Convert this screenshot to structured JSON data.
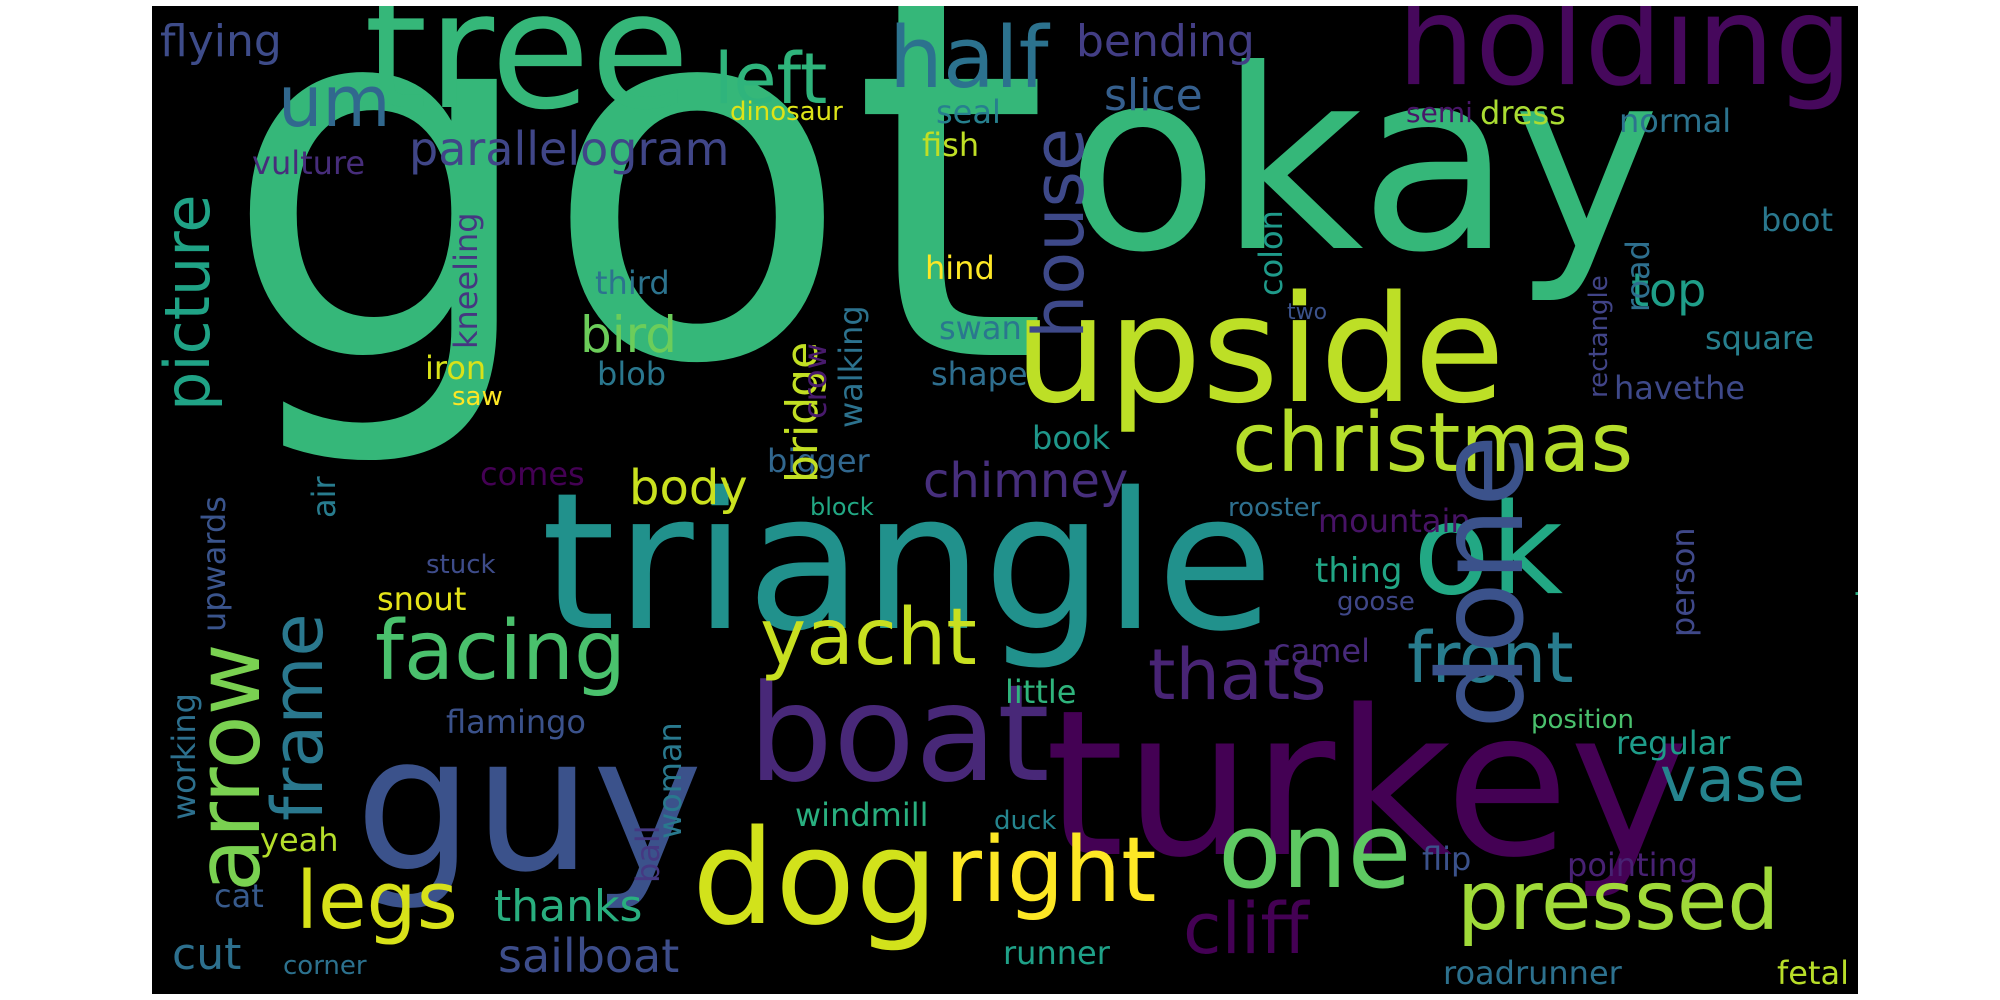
{
  "background": "#000000",
  "words": [
    {
      "text": "got",
      "color": "#35b779"
    },
    {
      "text": "okay",
      "color": "#35b779"
    },
    {
      "text": "triangle",
      "color": "#21918c"
    },
    {
      "text": "turkey",
      "color": "#440154"
    },
    {
      "text": "tree",
      "color": "#35b779"
    },
    {
      "text": "holding",
      "color": "#46085c"
    },
    {
      "text": "upside",
      "color": "#bddf26"
    },
    {
      "text": "guy",
      "color": "#3b528b"
    },
    {
      "text": "boat",
      "color": "#482878"
    },
    {
      "text": "dog",
      "color": "#d2e21b"
    },
    {
      "text": "ok",
      "color": "#22a884"
    },
    {
      "text": "done",
      "color": "#3b528b"
    },
    {
      "text": "one",
      "color": "#5ec962"
    },
    {
      "text": "half",
      "color": "#2c728e"
    },
    {
      "text": "christmas",
      "color": "#b5de2b"
    },
    {
      "text": "right",
      "color": "#fde725"
    },
    {
      "text": "pressed",
      "color": "#a0da39"
    },
    {
      "text": "facing",
      "color": "#4ac16d"
    },
    {
      "text": "yacht",
      "color": "#c8e020"
    },
    {
      "text": "left",
      "color": "#2fb47c"
    },
    {
      "text": "um",
      "color": "#31688e"
    },
    {
      "text": "house",
      "color": "#3e4989"
    },
    {
      "text": "legs",
      "color": "#d8e219"
    },
    {
      "text": "front",
      "color": "#287c8e"
    },
    {
      "text": "thats",
      "color": "#482475"
    },
    {
      "text": "cliff",
      "color": "#440154"
    },
    {
      "text": "arrow",
      "color": "#7ad151"
    },
    {
      "text": "frame",
      "color": "#2a788e"
    },
    {
      "text": "picture",
      "color": "#20a386"
    },
    {
      "text": "vase",
      "color": "#25848e"
    },
    {
      "text": "parallelogram",
      "color": "#404688"
    },
    {
      "text": "bending",
      "color": "#433e85"
    },
    {
      "text": "slice",
      "color": "#355f8d"
    },
    {
      "text": "flying",
      "color": "#3e4c8a"
    },
    {
      "text": "bird",
      "color": "#6ccd5a"
    },
    {
      "text": "body",
      "color": "#cae11f"
    },
    {
      "text": "chimney",
      "color": "#472f7d"
    },
    {
      "text": "bridge",
      "color": "#c2df23"
    },
    {
      "text": "top",
      "color": "#1f9e89"
    },
    {
      "text": "thanks",
      "color": "#29af7f"
    },
    {
      "text": "sailboat",
      "color": "#3d4d8a"
    },
    {
      "text": "cut",
      "color": "#2d708e"
    },
    {
      "text": "mountain",
      "color": "#471365"
    },
    {
      "text": "thing",
      "color": "#21a685"
    },
    {
      "text": "windmill",
      "color": "#29af7f"
    },
    {
      "text": "regular",
      "color": "#1e9c89"
    },
    {
      "text": "pointing",
      "color": "#482173"
    },
    {
      "text": "flip",
      "color": "#3b528b"
    },
    {
      "text": "runner",
      "color": "#1fa188"
    },
    {
      "text": "roadrunner",
      "color": "#2d718e"
    },
    {
      "text": "fetal",
      "color": "#b8de29"
    },
    {
      "text": "snout",
      "color": "#e5e419"
    },
    {
      "text": "hind",
      "color": "#fde725"
    },
    {
      "text": "fish",
      "color": "#c0df25"
    },
    {
      "text": "dress",
      "color": "#aadc32"
    },
    {
      "text": "seal",
      "color": "#27808e"
    },
    {
      "text": "dinosaur",
      "color": "#dde318"
    },
    {
      "text": "normal",
      "color": "#2c738e"
    },
    {
      "text": "semi",
      "color": "#481668"
    },
    {
      "text": "boot",
      "color": "#2a788e"
    },
    {
      "text": "square",
      "color": "#277f8e"
    },
    {
      "text": "swan",
      "color": "#2a778e"
    },
    {
      "text": "shape",
      "color": "#2e6e8e"
    },
    {
      "text": "book",
      "color": "#1f978b"
    },
    {
      "text": "bigger",
      "color": "#31678e"
    },
    {
      "text": "third",
      "color": "#2c738e"
    },
    {
      "text": "blob",
      "color": "#2a778e"
    },
    {
      "text": "iron",
      "color": "#d8e219"
    },
    {
      "text": "saw",
      "color": "#fde725"
    },
    {
      "text": "vulture",
      "color": "#472d7b"
    },
    {
      "text": "comes",
      "color": "#440154"
    },
    {
      "text": "block",
      "color": "#22a884"
    },
    {
      "text": "havethe",
      "color": "#3e4989"
    },
    {
      "text": "rooster",
      "color": "#2e6f8e"
    },
    {
      "text": "goose",
      "color": "#3f4788"
    },
    {
      "text": "camel",
      "color": "#472a7a"
    },
    {
      "text": "little",
      "color": "#2fb47c"
    },
    {
      "text": "position",
      "color": "#4ac16d"
    },
    {
      "text": "flamingo",
      "color": "#3b528b"
    },
    {
      "text": "yeah",
      "color": "#b5de2b"
    },
    {
      "text": "cat",
      "color": "#375a8c"
    },
    {
      "text": "corner",
      "color": "#2c718e"
    },
    {
      "text": "duck",
      "color": "#25858e"
    },
    {
      "text": "stuck",
      "color": "#3e4c8a"
    },
    {
      "text": "two",
      "color": "#3b528b"
    },
    {
      "text": "crow",
      "color": "#481a6c"
    },
    {
      "text": "walking",
      "color": "#2c728e"
    },
    {
      "text": "colon",
      "color": "#1f9a8a"
    },
    {
      "text": "road",
      "color": "#2e6f8e"
    },
    {
      "text": "rectangle",
      "color": "#414487"
    },
    {
      "text": "person",
      "color": "#3f4889"
    },
    {
      "text": "running",
      "color": "#28ae80"
    },
    {
      "text": "kneeling",
      "color": "#453781"
    },
    {
      "text": "upwards",
      "color": "#3a548c"
    },
    {
      "text": "working",
      "color": "#2d708e"
    },
    {
      "text": "air",
      "color": "#287c8e"
    },
    {
      "text": "woman",
      "color": "#29798e"
    },
    {
      "text": "ball",
      "color": "#453882"
    }
  ]
}
